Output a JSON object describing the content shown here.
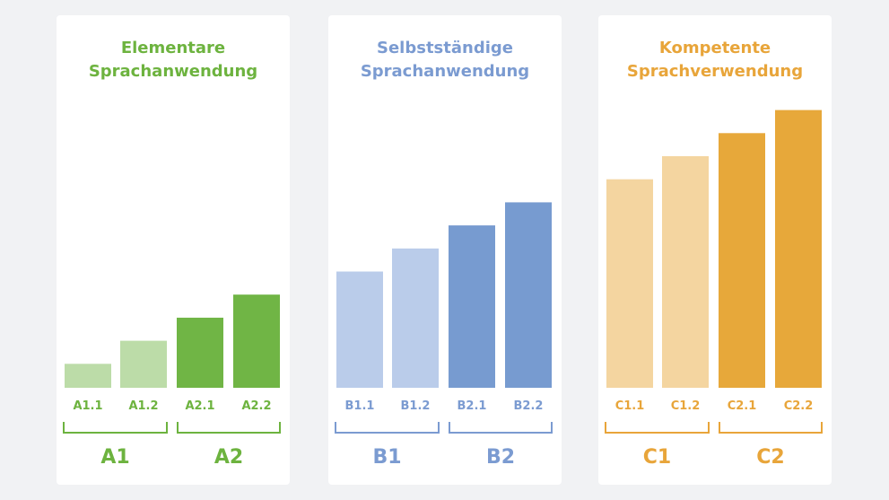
{
  "chart_data": [
    {
      "type": "bar",
      "title_lines": [
        "Elementare",
        "Sprachanwendung"
      ],
      "categories": [
        "A1.1",
        "A1.2",
        "A2.1",
        "A2.2"
      ],
      "values": [
        1,
        2,
        3,
        4
      ],
      "groups": [
        "A1",
        "A2"
      ],
      "colors": {
        "title": "#6db33f",
        "light": "#bcdca8",
        "dark": "#70b545"
      }
    },
    {
      "type": "bar",
      "title_lines": [
        "Selbstständige",
        "Sprachanwendung"
      ],
      "categories": [
        "B1.1",
        "B1.2",
        "B2.1",
        "B2.2"
      ],
      "values": [
        5,
        6,
        7,
        8
      ],
      "groups": [
        "B1",
        "B2"
      ],
      "colors": {
        "title": "#7b9bd1",
        "light": "#baccea",
        "dark": "#779bd0"
      }
    },
    {
      "type": "bar",
      "title_lines": [
        "Kompetente",
        "Sprachverwendung"
      ],
      "categories": [
        "C1.1",
        "C1.2",
        "C2.1",
        "C2.2"
      ],
      "values": [
        9,
        10,
        11,
        12
      ],
      "groups": [
        "C1",
        "C2"
      ],
      "colors": {
        "title": "#e8a53a",
        "light": "#f4d5a0",
        "dark": "#e7a83a"
      }
    }
  ]
}
